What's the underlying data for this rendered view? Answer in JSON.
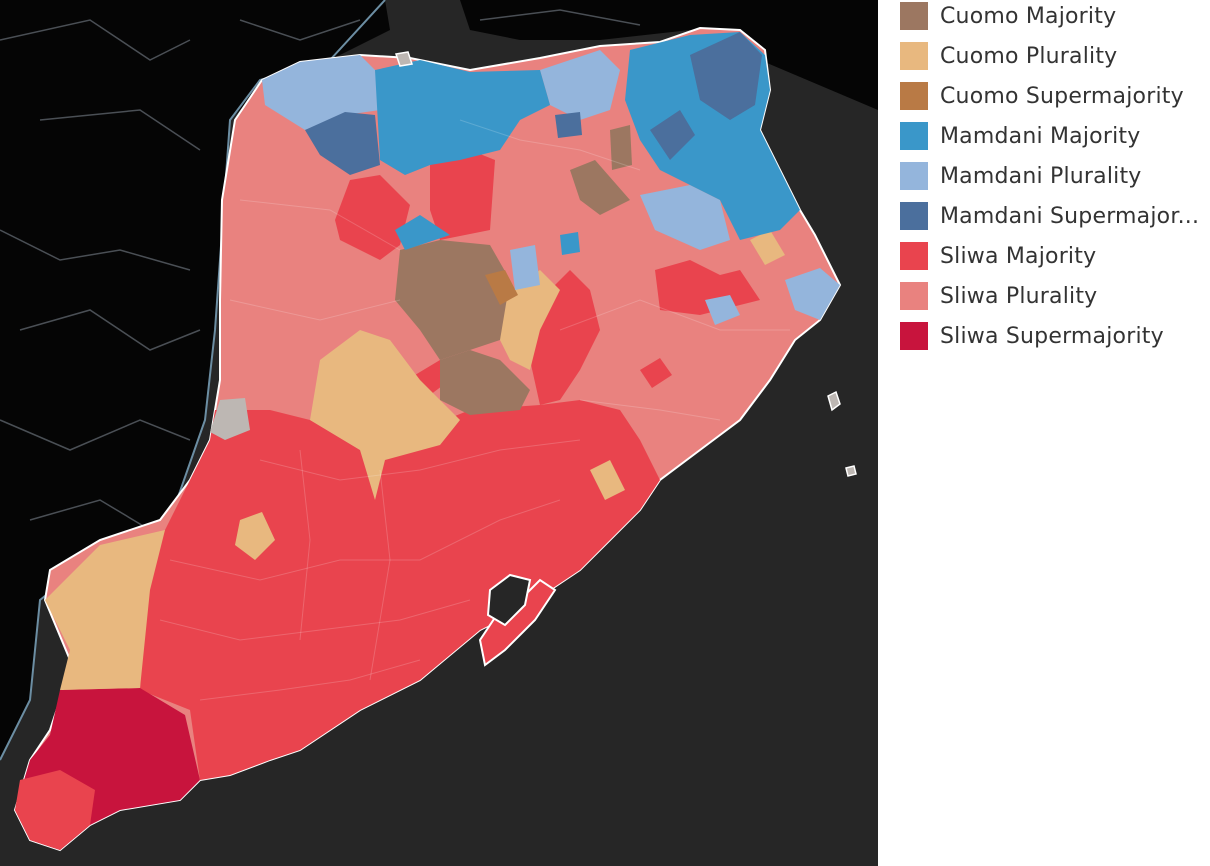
{
  "legend": {
    "items": [
      {
        "label": "Cuomo Majority",
        "color": "#9c7761"
      },
      {
        "label": "Cuomo Plurality",
        "color": "#e8b87f"
      },
      {
        "label": "Cuomo Supermajority",
        "color": "#b97a45"
      },
      {
        "label": "Mamdani Majority",
        "color": "#3a97c9"
      },
      {
        "label": "Mamdani Plurality",
        "color": "#94b5dc"
      },
      {
        "label": "Mamdani Supermajor...",
        "color": "#4b6f9d"
      },
      {
        "label": "Sliwa Majority",
        "color": "#e9444e"
      },
      {
        "label": "Sliwa Plurality",
        "color": "#e9827f"
      },
      {
        "label": "Sliwa Supermajority",
        "color": "#c8143d"
      }
    ]
  },
  "map": {
    "background": "#262626",
    "land_background": "#050505",
    "no_data_color": "#bdb7b3"
  }
}
